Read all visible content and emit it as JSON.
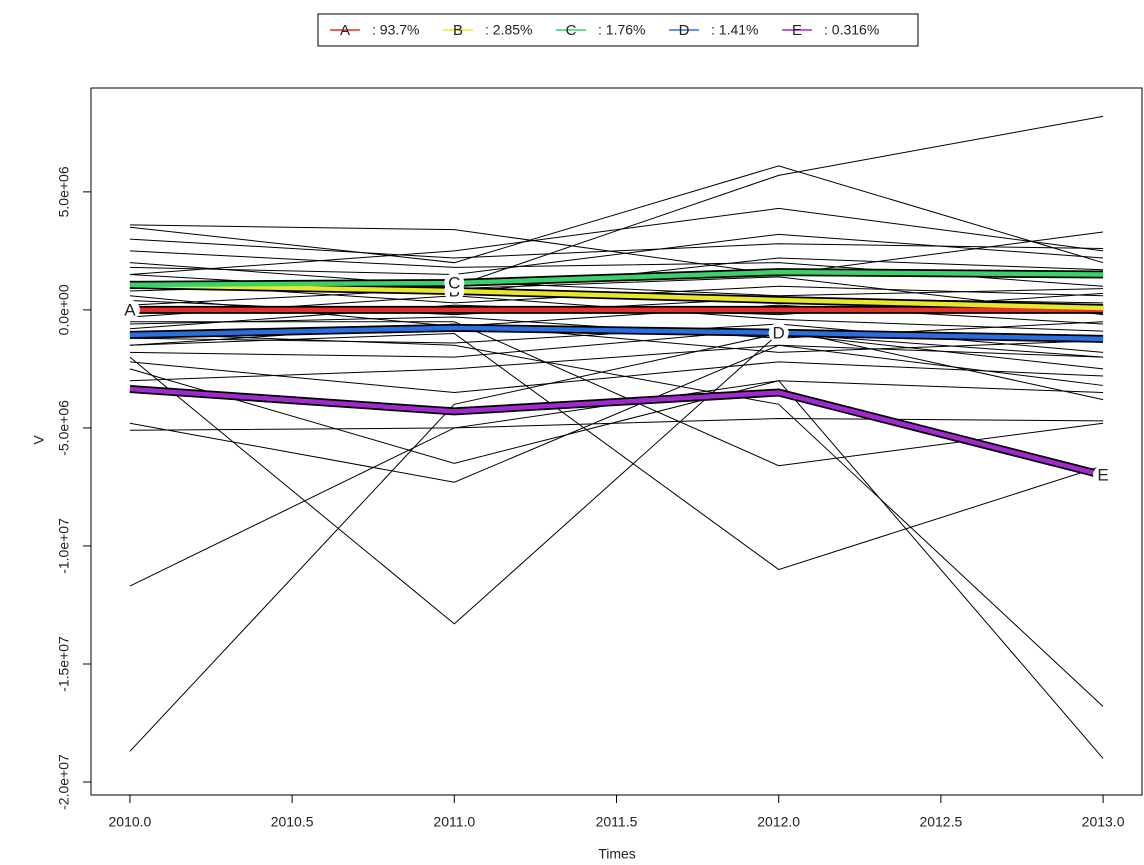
{
  "chart_data": {
    "type": "line",
    "x": [
      2010,
      2011,
      2012,
      2013
    ],
    "x_label": "Times",
    "y_label": "V",
    "xlim": [
      2009.88,
      2013.12
    ],
    "xticks": [
      {
        "value": 2010,
        "label": "2010.0"
      },
      {
        "value": 2010.5,
        "label": "2010.5"
      },
      {
        "value": 2011,
        "label": "2011.0"
      },
      {
        "value": 2011.5,
        "label": "2011.5"
      },
      {
        "value": 2012,
        "label": "2012.0"
      },
      {
        "value": 2012.5,
        "label": "2012.5"
      },
      {
        "value": 2013,
        "label": "2013.0"
      }
    ],
    "ylim": [
      -20550000,
      9400000
    ],
    "yticks": [
      {
        "value": -20000000,
        "label": "-2.0e+07"
      },
      {
        "value": -15000000,
        "label": "-1.5e+07"
      },
      {
        "value": -10000000,
        "label": "-1.0e+07"
      },
      {
        "value": -5000000,
        "label": "-5.0e+06"
      },
      {
        "value": 0,
        "label": "0.0e+00"
      },
      {
        "value": 5000000,
        "label": "5.0e+06"
      }
    ],
    "trajectory_color": "#000000",
    "trajectories": [
      [
        -18700000,
        -4000000,
        -1000000,
        -2000000
      ],
      [
        -11700000,
        -5000000,
        -3000000,
        -3500000
      ],
      [
        -2000000,
        -13300000,
        -1000000,
        -2500000
      ],
      [
        -1500000,
        -1000000,
        -11000000,
        -6600000
      ],
      [
        -500000,
        -500000,
        -6600000,
        -4800000
      ],
      [
        -2500000,
        -6500000,
        -3000000,
        -19000000
      ],
      [
        -1000000,
        -1500000,
        -4000000,
        -16800000
      ],
      [
        2000000,
        1000000,
        5700000,
        8200000
      ],
      [
        3500000,
        2000000,
        6100000,
        2000000
      ],
      [
        -4800000,
        -7300000,
        -1500000,
        -2000000
      ],
      [
        3600000,
        3400000,
        1500000,
        3300000
      ],
      [
        -5100000,
        -5000000,
        -4600000,
        -4700000
      ],
      [
        1500000,
        2500000,
        4300000,
        2500000
      ],
      [
        3000000,
        2200000,
        2800000,
        2600000
      ],
      [
        2500000,
        1800000,
        2000000,
        1000000
      ],
      [
        -3000000,
        -2500000,
        -1500000,
        -3200000
      ],
      [
        -2200000,
        -3500000,
        -2200000,
        -2800000
      ],
      [
        1800000,
        1500000,
        3200000,
        2200000
      ],
      [
        -1800000,
        -2000000,
        -800000,
        -3800000
      ],
      [
        800000,
        1200000,
        600000,
        900000
      ],
      [
        -600000,
        -300000,
        -1200000,
        -500000
      ],
      [
        400000,
        -200000,
        500000,
        300000
      ],
      [
        -300000,
        600000,
        -400000,
        -900000
      ],
      [
        1200000,
        300000,
        1000000,
        600000
      ],
      [
        -1200000,
        -1400000,
        -600000,
        -1800000
      ],
      [
        200000,
        900000,
        1400000,
        -200000
      ],
      [
        -800000,
        200000,
        -200000,
        700000
      ],
      [
        600000,
        -700000,
        200000,
        -600000
      ],
      [
        -1500000,
        -600000,
        -1800000,
        -1300000
      ],
      [
        1500000,
        700000,
        2200000,
        1700000
      ]
    ],
    "series": [
      {
        "name": "A",
        "legend_label": ": 93.7%",
        "color": "#e8302a",
        "values": [
          0,
          0,
          0,
          0
        ],
        "label_x": 2010
      },
      {
        "name": "B",
        "legend_label": ": 2.85%",
        "color": "#e8e82a",
        "values": [
          1060000,
          800000,
          420000,
          80000
        ],
        "label_x": 2011
      },
      {
        "name": "C",
        "legend_label": ": 1.76%",
        "color": "#3ad06a",
        "values": [
          1060000,
          1140000,
          1600000,
          1500000
        ],
        "label_x": 2011
      },
      {
        "name": "D",
        "legend_label": ": 1.41%",
        "color": "#2a6ee0",
        "values": [
          -1060000,
          -760000,
          -970000,
          -1230000
        ],
        "label_x": 2012
      },
      {
        "name": "E",
        "legend_label": ": 0.316%",
        "color": "#a02ad0",
        "values": [
          -3350000,
          -4300000,
          -3500000,
          -7000000
        ],
        "label_x": 2013
      }
    ]
  }
}
